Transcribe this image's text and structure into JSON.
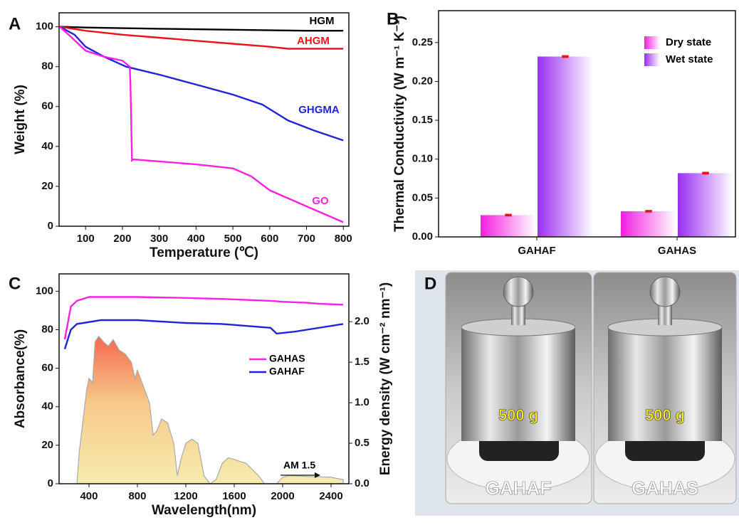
{
  "chart_data": [
    {
      "type": "line",
      "panel": "A",
      "xlabel": "Temperature (℃)",
      "ylabel": "Weight (%)",
      "xlim": [
        28,
        815
      ],
      "ylim": [
        0,
        107
      ],
      "xticks": [
        100,
        200,
        300,
        400,
        500,
        600,
        700,
        800
      ],
      "yticks": [
        0,
        20,
        40,
        60,
        80,
        100
      ],
      "series": [
        {
          "name": "HGM",
          "color": "#000000",
          "x": [
            30,
            100,
            300,
            500,
            700,
            800
          ],
          "values": [
            100,
            99.6,
            99,
            98.5,
            98,
            98
          ]
        },
        {
          "name": "AHGM",
          "color": "#e8141b",
          "x": [
            30,
            100,
            200,
            300,
            400,
            500,
            600,
            650,
            700,
            800
          ],
          "values": [
            100,
            98,
            96,
            94.5,
            93,
            91.5,
            90,
            89,
            89,
            89
          ]
        },
        {
          "name": "GHGMA",
          "color": "#1f24d8",
          "x": [
            30,
            70,
            100,
            150,
            210,
            300,
            400,
            500,
            580,
            650,
            720,
            800
          ],
          "values": [
            100,
            96,
            90,
            85,
            80,
            76,
            71,
            66,
            61,
            53,
            48,
            43
          ]
        },
        {
          "name": "GO",
          "color": "#ff1fe3",
          "x": [
            30,
            60,
            100,
            150,
            200,
            220,
            222,
            226,
            230,
            300,
            400,
            500,
            550,
            600,
            700,
            800
          ],
          "values": [
            100,
            95,
            88,
            85,
            83,
            80,
            70,
            33,
            33.5,
            32.5,
            31,
            29,
            25,
            18,
            10,
            2
          ]
        }
      ]
    },
    {
      "type": "bar",
      "panel": "B",
      "ylabel": "Thermal Conductivity (W m⁻¹ K⁻¹)",
      "ylim": [
        0,
        0.291
      ],
      "yticks": [
        {
          "value": 0,
          "label": "0.00"
        },
        0.05,
        {
          "value": 0.1,
          "label": "0.10"
        },
        0.15,
        {
          "value": 0.2,
          "label": "0.20"
        },
        0.25
      ],
      "categories": [
        "GAHAF",
        "GAHAS"
      ],
      "series": [
        {
          "name": "Dry state",
          "color": "#f21ee0",
          "values": [
            0.028,
            0.033
          ],
          "errors": [
            0.001,
            0.001
          ]
        },
        {
          "name": "Wet state",
          "color": "#9a2ef2",
          "values": [
            0.232,
            0.082
          ],
          "errors": [
            0.001,
            0.001
          ]
        }
      ]
    },
    {
      "type": "line",
      "panel": "C",
      "xlabel": "Wavelength(nm)",
      "ylabel": "Absorbance(%)",
      "y2label": "Energy density (W cm⁻² nm⁻¹)",
      "xlim": [
        153,
        2547
      ],
      "ylim": [
        0,
        109
      ],
      "y2lim": [
        0,
        2.59
      ],
      "xticks": [
        400,
        800,
        1200,
        1600,
        2000,
        2400
      ],
      "yticks": [
        0,
        20,
        40,
        60,
        80,
        100
      ],
      "y2ticks": [
        {
          "value": 0,
          "label": "0.0"
        },
        0.5,
        {
          "value": 1,
          "label": "1.0"
        },
        1.5,
        {
          "value": 2,
          "label": "2.0"
        }
      ],
      "series": [
        {
          "name": "GAHAS",
          "color": "#ff1fe3",
          "x": [
            200,
            250,
            300,
            400,
            800,
            1200,
            1500,
            1900,
            2000,
            2200,
            2300,
            2500
          ],
          "values": [
            75,
            92,
            95,
            97,
            97,
            96.5,
            96,
            95,
            94.5,
            94,
            93.5,
            93
          ]
        },
        {
          "name": "GAHAF",
          "color": "#1f24d8",
          "x": [
            200,
            250,
            300,
            500,
            800,
            1200,
            1500,
            1900,
            1950,
            2100,
            2200,
            2500
          ],
          "values": [
            70,
            80,
            83,
            85,
            85,
            83.5,
            83,
            81,
            78,
            79,
            80,
            83
          ]
        },
        {
          "name": "AM 1.5",
          "color": "#a9a9a9",
          "area": true,
          "axis": "y2",
          "x": [
            300,
            320,
            360,
            380,
            400,
            430,
            450,
            480,
            520,
            560,
            600,
            650,
            700,
            750,
            780,
            800,
            850,
            900,
            930,
            960,
            1000,
            1050,
            1100,
            1130,
            1160,
            1200,
            1250,
            1300,
            1350,
            1400,
            1450,
            1500,
            1550,
            1600,
            1700,
            1800,
            1850,
            1950,
            2000,
            2050,
            2200,
            2400,
            2500
          ],
          "values": [
            0,
            0.4,
            0.9,
            1.15,
            1.3,
            1.25,
            1.75,
            1.82,
            1.75,
            1.7,
            1.78,
            1.65,
            1.6,
            1.5,
            1.3,
            1.4,
            1.2,
            1.0,
            0.6,
            0.65,
            0.8,
            0.75,
            0.5,
            0.1,
            0.3,
            0.5,
            0.55,
            0.5,
            0.1,
            0,
            0.05,
            0.25,
            0.32,
            0.3,
            0.25,
            0.1,
            0,
            0,
            0.08,
            0.1,
            0.09,
            0.08,
            0.05
          ]
        }
      ]
    }
  ],
  "photo": {
    "panel": "D",
    "weight_labels": [
      "500 g",
      "500 g"
    ],
    "sample_labels": [
      "GAHAF",
      "GAHAS"
    ]
  }
}
